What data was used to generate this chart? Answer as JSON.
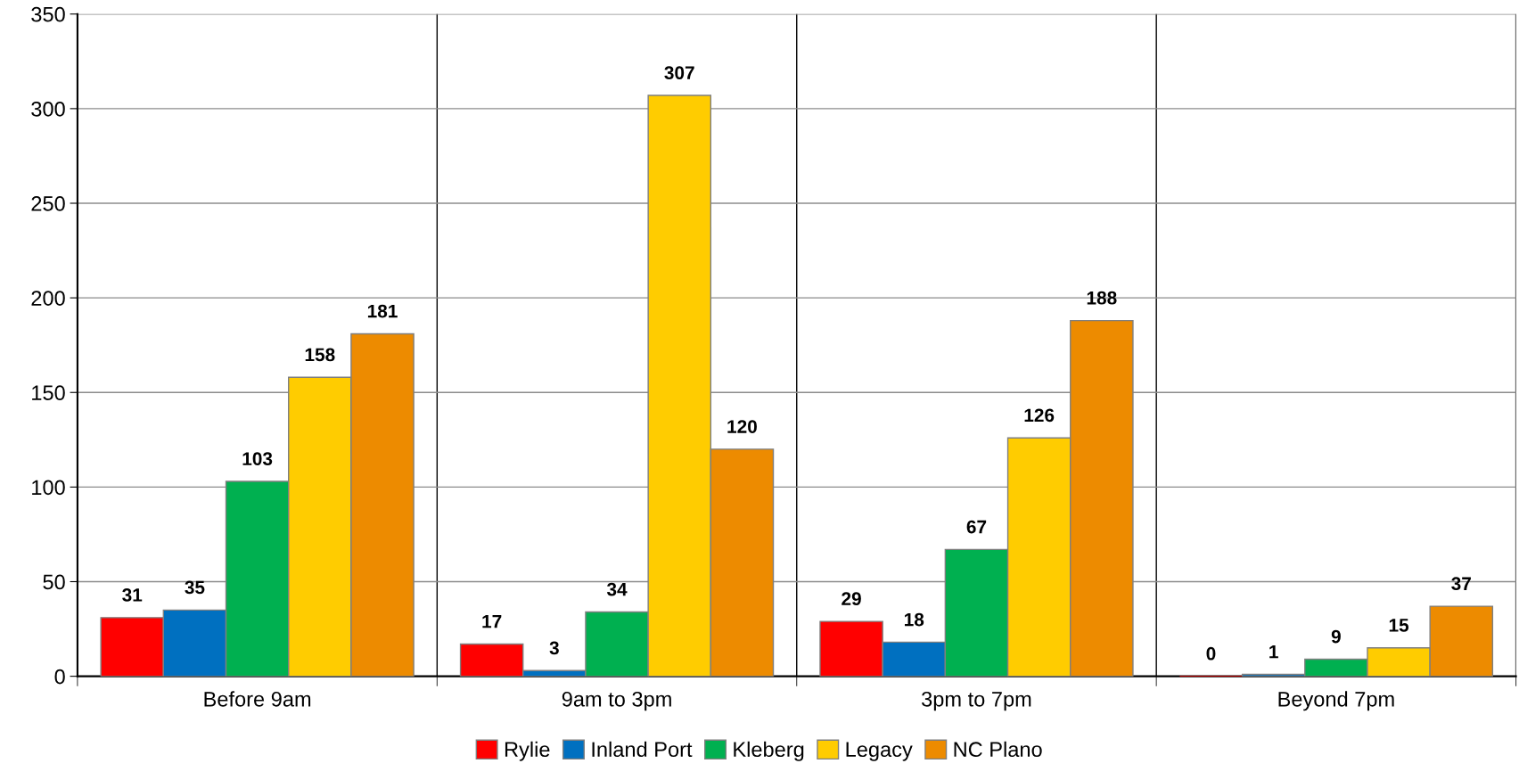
{
  "chart_data": {
    "type": "bar",
    "categories": [
      "Before 9am",
      "9am to 3pm",
      "3pm to 7pm",
      "Beyond 7pm"
    ],
    "series": [
      {
        "name": "Rylie",
        "color": "#ff0000",
        "values": [
          31,
          17,
          29,
          0
        ]
      },
      {
        "name": "Inland Port",
        "color": "#0070c0",
        "values": [
          35,
          3,
          18,
          1
        ]
      },
      {
        "name": "Kleberg",
        "color": "#00b050",
        "values": [
          103,
          34,
          67,
          9
        ]
      },
      {
        "name": "Legacy",
        "color": "#ffcc00",
        "values": [
          158,
          307,
          126,
          15
        ]
      },
      {
        "name": "NC Plano",
        "color": "#ed8b00",
        "values": [
          181,
          120,
          188,
          37
        ]
      }
    ],
    "ylim": [
      0,
      350
    ],
    "yticks": [
      0,
      50,
      100,
      150,
      200,
      250,
      300,
      350
    ],
    "grid": true,
    "legend": "bottom",
    "data_labels": true
  }
}
